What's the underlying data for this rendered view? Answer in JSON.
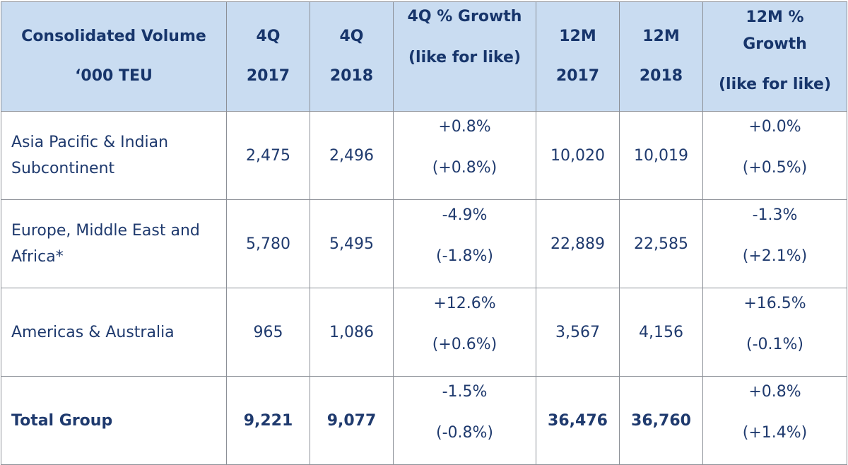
{
  "header": {
    "col0": [
      "Consolidated Volume",
      "‘000 TEU"
    ],
    "col1": [
      "4Q",
      "2017"
    ],
    "col2": [
      "4Q",
      "2018"
    ],
    "col3": [
      "4Q % Growth",
      "(like for like)"
    ],
    "col4": [
      "12M",
      "2017"
    ],
    "col5": [
      "12M",
      "2018"
    ],
    "col6": [
      "12M %",
      "Growth",
      "(like for like)"
    ]
  },
  "rows": [
    {
      "label": "Asia Pacific & Indian Subcontinent",
      "q4_2017": "2,475",
      "q4_2018": "2,496",
      "q4_growth": "+0.8%",
      "q4_growth_lfl": "(+0.8%)",
      "m12_2017": "10,020",
      "m12_2018": "10,019",
      "m12_growth": "+0.0%",
      "m12_growth_lfl": "(+0.5%)"
    },
    {
      "label": "Europe, Middle East and Africa*",
      "q4_2017": "5,780",
      "q4_2018": "5,495",
      "q4_growth": "-4.9%",
      "q4_growth_lfl": "(-1.8%)",
      "m12_2017": "22,889",
      "m12_2018": "22,585",
      "m12_growth": "-1.3%",
      "m12_growth_lfl": "(+2.1%)"
    },
    {
      "label": "Americas & Australia",
      "q4_2017": "965",
      "q4_2018": "1,086",
      "q4_growth": "+12.6%",
      "q4_growth_lfl": "(+0.6%)",
      "m12_2017": "3,567",
      "m12_2018": "4,156",
      "m12_growth": "+16.5%",
      "m12_growth_lfl": "(-0.1%)"
    },
    {
      "label": "Total Group",
      "q4_2017": "9,221",
      "q4_2018": "9,077",
      "q4_growth": "-1.5%",
      "q4_growth_lfl": "(-0.8%)",
      "m12_2017": "36,476",
      "m12_2018": "36,760",
      "m12_growth": "+0.8%",
      "m12_growth_lfl": "(+1.4%)"
    }
  ],
  "colors": {
    "header_bg": "#c9dcf1",
    "text": "#1f3a6e",
    "border": "#8c9097"
  }
}
